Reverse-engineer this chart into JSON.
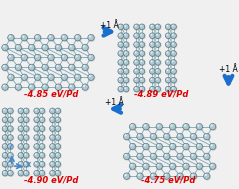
{
  "background_color": "#f0f0f0",
  "energy_labels": [
    "-4.85 eV/Pd",
    "-4.89 eV/Pd",
    "-4.90 eV/Pd",
    "-4.75 eV/Pd"
  ],
  "energy_color": "#dd0000",
  "arrow_color": "#1a6fcc",
  "arrow_label": "+1 Å",
  "figsize": [
    2.39,
    1.89
  ],
  "dpi": 100,
  "atom_face": "#b0c8d0",
  "atom_edge": "#4a7080",
  "bond_color": "#8ab0bc",
  "axis_color": "#4488cc",
  "bg_panel": "#e8eef0"
}
